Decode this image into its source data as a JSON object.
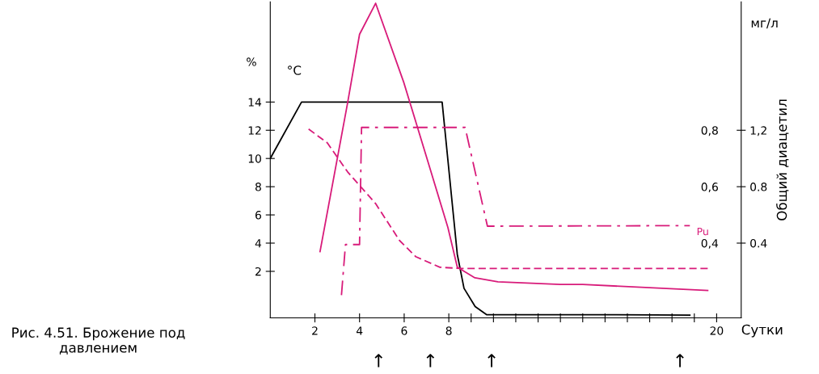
{
  "chart_data": {
    "type": "line",
    "title": "Рис. 4.51. Брожение под давлением",
    "xlabel": "Сутки",
    "ylabel": "%",
    "y2label": "Общий диацетил",
    "annotations": [
      "°C",
      "мг/л",
      "↑",
      "↑",
      "↑",
      "↑"
    ],
    "xlim": [
      0,
      21.1
    ],
    "xticks": [
      2,
      4,
      6,
      8,
      {
        "value": 9,
        "label": null
      },
      {
        "value": 10,
        "label": null
      },
      {
        "value": 11,
        "label": null
      },
      {
        "value": 12,
        "label": null
      },
      {
        "value": 13,
        "label": null
      },
      {
        "value": 14,
        "label": null
      },
      {
        "value": 15,
        "label": null
      },
      {
        "value": 16,
        "label": null
      },
      {
        "value": 17,
        "label": null
      },
      {
        "value": 18,
        "label": null
      },
      {
        "value": 19,
        "label": null
      },
      20
    ],
    "ylim": [
      -1.3,
      21.1
    ],
    "yticks": [
      2,
      4,
      6,
      8,
      10,
      12,
      14
    ],
    "y2lim": [
      -0.13,
      2.11
    ],
    "y2ticks": [
      {
        "value": 0.4,
        "label": "0.4"
      },
      {
        "value": 0.8,
        "label": "0.8"
      },
      {
        "value": 1.2,
        "label": "1,2"
      }
    ],
    "y3lim": [
      0.135,
      1.255
    ],
    "y3ticks": [
      {
        "value": 0.4,
        "label": "0,4"
      },
      {
        "value": 0.6,
        "label": "0,6"
      },
      {
        "value": 0.8,
        "label": "0,8"
      }
    ],
    "grid": false,
    "legend": false,
    "marker": "none",
    "series": [
      {
        "color": "#000000",
        "line_style": "solid",
        "x": [
          0,
          1.4,
          7.7,
          8.38,
          8.68,
          9.18,
          9.69,
          14,
          18.8
        ],
        "values": [
          10,
          14,
          14,
          3.2,
          0.8,
          -0.5,
          -1.07,
          -1.07,
          -1.1
        ]
      },
      {
        "color": "#d81b7a",
        "line_style": "solid",
        "x": [
          2.23,
          3.46,
          4.0,
          4.72,
          5.98,
          7.06,
          7.96,
          8.38,
          9.17,
          10.2,
          13.0,
          14,
          19.6
        ],
        "values": [
          3.4,
          13.9,
          18.8,
          21.0,
          15.4,
          9.8,
          5.1,
          2.3,
          1.54,
          1.26,
          1.07,
          1.07,
          0.64
        ]
      },
      {
        "color": "#d81b7a",
        "line_style": "dashed",
        "x": [
          1.62,
          2.56,
          3.46,
          4.72,
          5.8,
          6.52,
          7.6,
          8.6,
          19.6
        ],
        "values": [
          12.2,
          11.1,
          9.06,
          6.8,
          4.17,
          3.04,
          2.29,
          2.2,
          2.2
        ]
      },
      {
        "name": "Pu",
        "color": "#d81b7a",
        "line_style": "dashdot",
        "x": [
          3.19,
          3.37,
          4.0,
          4.09,
          8.73,
          9.73,
          18.8
        ],
        "values": [
          0.31,
          3.9,
          3.9,
          12.2,
          12.2,
          5.2,
          5.24
        ]
      }
    ]
  }
}
